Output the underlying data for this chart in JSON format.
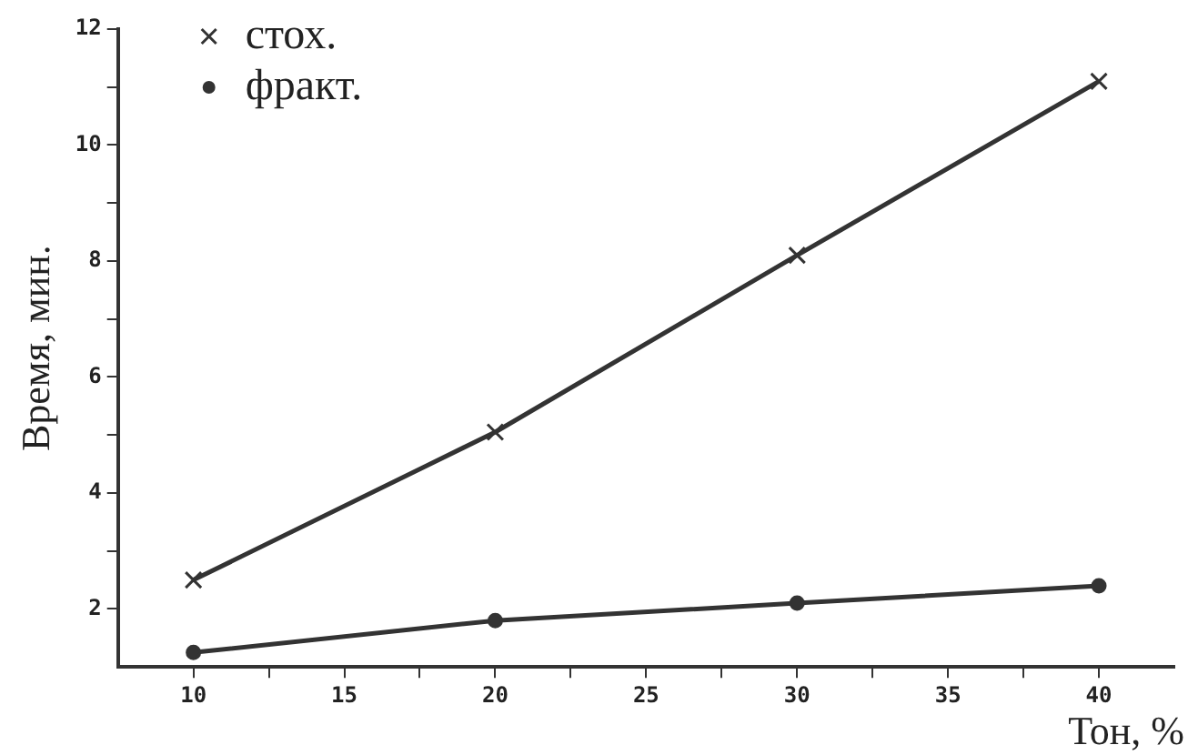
{
  "chart_data": {
    "type": "line",
    "xlabel": "Тон, %",
    "ylabel": "Время, мин.",
    "xlim": [
      7.5,
      42.5
    ],
    "xticks": [
      10,
      {
        "value": 12.5,
        "label": null
      },
      15,
      {
        "value": 17.5,
        "label": null
      },
      20,
      {
        "value": 22.5,
        "label": null
      },
      25,
      {
        "value": 27.5,
        "label": null
      },
      30,
      {
        "value": 32.5,
        "label": null
      },
      35,
      {
        "value": 37.5,
        "label": null
      },
      40
    ],
    "ylim": [
      1,
      12
    ],
    "yticks": [
      2,
      {
        "value": 3,
        "label": null
      },
      4,
      {
        "value": 5,
        "label": null
      },
      6,
      {
        "value": 7,
        "label": null
      },
      8,
      {
        "value": 9,
        "label": null
      },
      10,
      {
        "value": 11,
        "label": null
      },
      12
    ],
    "x": [
      10,
      20,
      30,
      40
    ],
    "series": [
      {
        "name": "стох.",
        "color": "#333333",
        "values": [
          2.5,
          5.05,
          8.1,
          11.1
        ],
        "marker": "cross"
      },
      {
        "name": "фракт.",
        "color": "#333333",
        "values": [
          1.25,
          1.8,
          2.1,
          2.4
        ],
        "marker": "circle"
      }
    ],
    "grid": false,
    "legend": "top left",
    "line_style": "solid"
  }
}
